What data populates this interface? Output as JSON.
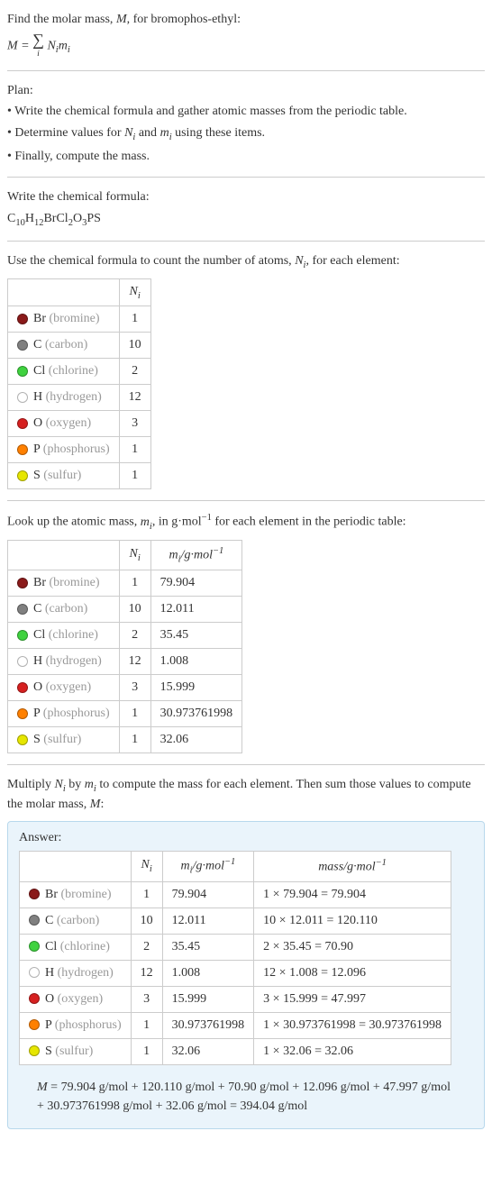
{
  "intro": {
    "line1_a": "Find the molar mass, ",
    "line1_b": ", for bromophos-ethyl:",
    "eq_lhs": "M = ",
    "eq_sum": "∑",
    "eq_idx": "i",
    "eq_rhs_a": " N",
    "eq_rhs_b": "m"
  },
  "plan": {
    "title": "Plan:",
    "b1": "• Write the chemical formula and gather atomic masses from the periodic table.",
    "b2_a": "• Determine values for ",
    "b2_b": " and ",
    "b2_c": " using these items.",
    "b3": "• Finally, compute the mass."
  },
  "chem": {
    "title": "Write the chemical formula:",
    "c": "C",
    "c_n": "10",
    "h": "H",
    "h_n": "12",
    "br": "Br",
    "cl": "Cl",
    "cl_n": "2",
    "o": "O",
    "o_n": "3",
    "p": "P",
    "s": "S"
  },
  "count": {
    "title_a": "Use the chemical formula to count the number of atoms, ",
    "title_b": ", for each element:",
    "hdr_n": "N",
    "hdr_i": "i"
  },
  "lookup": {
    "title_a": "Look up the atomic mass, ",
    "title_b": ", in g·mol",
    "title_c": " for each element in the periodic table:",
    "hdr_m": "m",
    "hdr_i": "i",
    "hdr_unit": "/g·mol",
    "neg1": "−1"
  },
  "mult": {
    "title_a": "Multiply ",
    "title_b": " by ",
    "title_c": " to compute the mass for each element. Then sum those values to compute the molar mass, ",
    "title_d": ":"
  },
  "answer_label": "Answer:",
  "hdr_mass": "mass/g·mol",
  "elements": [
    {
      "sym": "Br",
      "name": "(bromine)",
      "color": "#8a1a1a",
      "n": "1",
      "m": "79.904",
      "mass": "1 × 79.904 = 79.904"
    },
    {
      "sym": "C",
      "name": "(carbon)",
      "color": "#808080",
      "n": "10",
      "m": "12.011",
      "mass": "10 × 12.011 = 120.110"
    },
    {
      "sym": "Cl",
      "name": "(chlorine)",
      "color": "#3fd23f",
      "n": "2",
      "m": "35.45",
      "mass": "2 × 35.45 = 70.90"
    },
    {
      "sym": "H",
      "name": "(hydrogen)",
      "color": "#ffffff",
      "n": "12",
      "m": "1.008",
      "mass": "12 × 1.008 = 12.096"
    },
    {
      "sym": "O",
      "name": "(oxygen)",
      "color": "#d62020",
      "n": "3",
      "m": "15.999",
      "mass": "3 × 15.999 = 47.997"
    },
    {
      "sym": "P",
      "name": "(phosphorus)",
      "color": "#ff8000",
      "n": "1",
      "m": "30.973761998",
      "mass": "1 × 30.973761998 = 30.973761998"
    },
    {
      "sym": "S",
      "name": "(sulfur)",
      "color": "#e6e600",
      "n": "1",
      "m": "32.06",
      "mass": "1 × 32.06 = 32.06"
    }
  ],
  "final": {
    "a": "M",
    "b": " = 79.904 g/mol + 120.110 g/mol + 70.90 g/mol + 12.096 g/mol + 47.997 g/mol + 30.973761998 g/mol + 32.06 g/mol = 394.04 g/mol"
  },
  "Ni": {
    "N": "N",
    "i": "i"
  },
  "mi": {
    "m": "m",
    "i": "i"
  },
  "M": "M"
}
